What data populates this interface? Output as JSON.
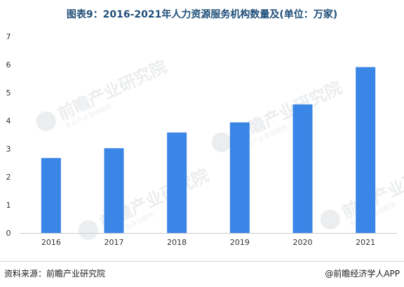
{
  "title": "图表9：2016-2021年人力资源服务机构数量及(单位：万家)",
  "chart_data": {
    "type": "bar",
    "categories": [
      "2016",
      "2017",
      "2018",
      "2019",
      "2020",
      "2021"
    ],
    "values": [
      2.67,
      3.02,
      3.58,
      3.94,
      4.58,
      5.91
    ],
    "ylim": [
      0,
      7
    ],
    "yticks": [
      "0",
      "1",
      "2",
      "3",
      "4",
      "5",
      "6",
      "7"
    ],
    "grid": false,
    "bar_color": "#3a86e6"
  },
  "watermark": {
    "name": "前瞻产业研究院",
    "sub": "专业产业咨询服务"
  },
  "footer": {
    "source": "资料来源：前瞻产业研究院",
    "brand": "@前瞻经济学人APP"
  }
}
